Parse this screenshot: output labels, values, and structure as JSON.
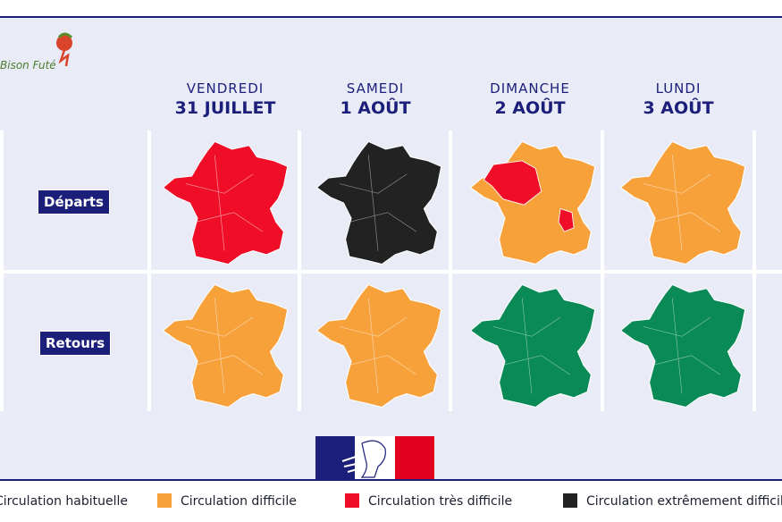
{
  "logo": {
    "text": "Bison Futé"
  },
  "columns": [
    {
      "day": "VENDREDI",
      "date": "31 JUILLET"
    },
    {
      "day": "SAMEDI",
      "date": "1 AOÛT"
    },
    {
      "day": "DIMANCHE",
      "date": "2 AOÛT"
    },
    {
      "day": "LUNDI",
      "date": "3 AOÛT"
    }
  ],
  "rows": [
    {
      "label": "Départs",
      "levels": [
        "rouge",
        "noir",
        "orange",
        "orange"
      ],
      "note": "Dimanche: orange with red zones (Île-de-France/Centre and Rhône-Alpes)"
    },
    {
      "label": "Retours",
      "levels": [
        "orange",
        "orange",
        "vert",
        "vert"
      ]
    }
  ],
  "colors": {
    "vert": "#0a8a57",
    "orange": "#f7a13a",
    "rouge": "#f00d27",
    "noir": "#222222",
    "navy": "#1b1f7a",
    "background": "#e9ebf6"
  },
  "legend": [
    {
      "label": "Circulation habituelle",
      "color": "#0a8a57"
    },
    {
      "label": "Circulation difficile",
      "color": "#f7a13a"
    },
    {
      "label": "Circulation très difficile",
      "color": "#f00d27"
    },
    {
      "label": "Circulation extrêmement difficile",
      "color": "#222222"
    }
  ],
  "icons": {
    "logo": "bison-fute-logo-icon",
    "marianne": "marianne-logo-icon"
  }
}
